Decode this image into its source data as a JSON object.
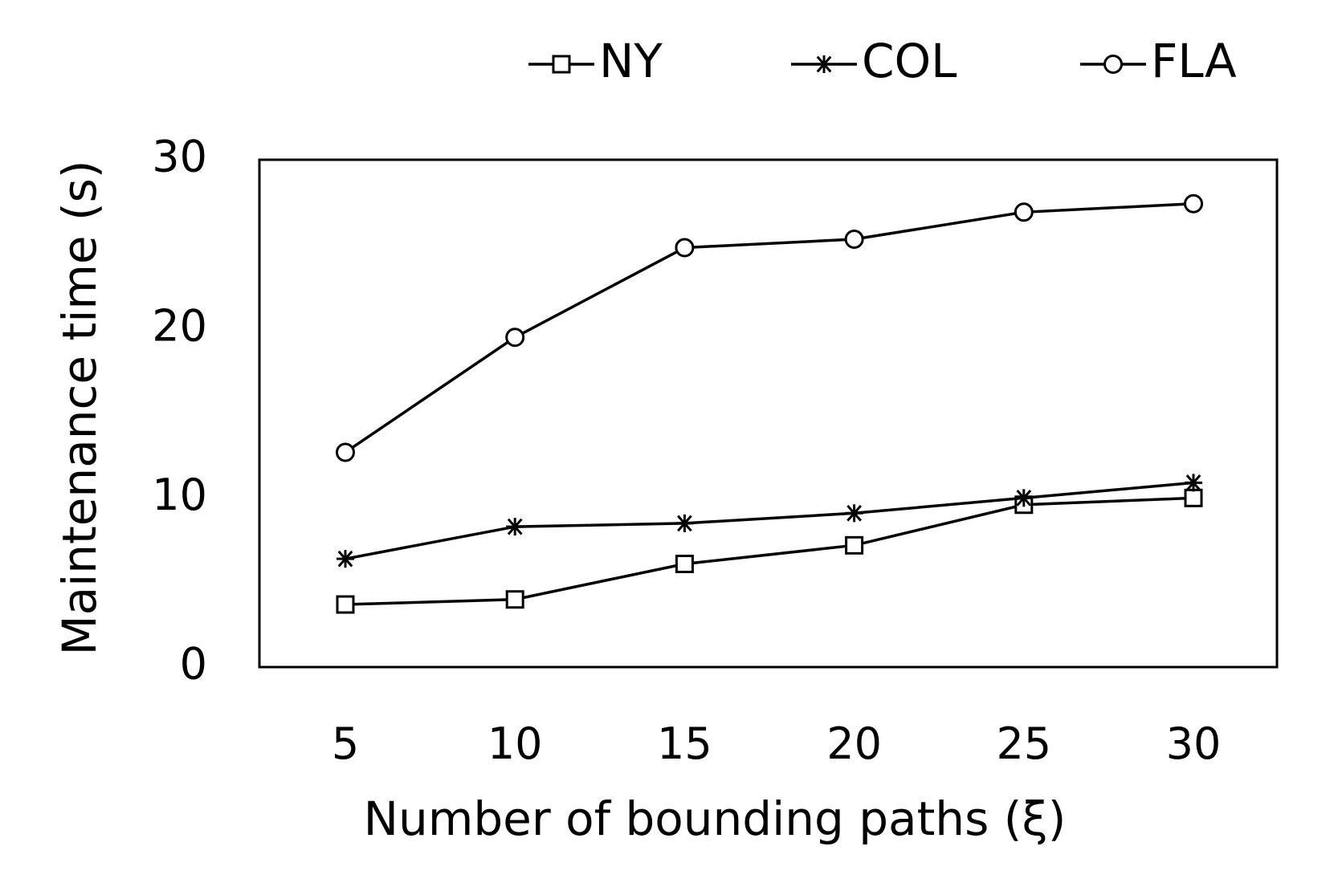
{
  "chart_data": {
    "type": "line",
    "title": "",
    "xlabel": "Number of bounding paths (ξ)",
    "ylabel": "Maintenance  time (s)",
    "x": [
      5,
      10,
      15,
      20,
      25,
      30
    ],
    "x_ticks": [
      "5",
      "10",
      "15",
      "20",
      "25",
      "30"
    ],
    "ylim": [
      0,
      30
    ],
    "y_ticks": [
      "0",
      "10",
      "20",
      "30"
    ],
    "grid": false,
    "legend_position": "top",
    "series": [
      {
        "name": "NY",
        "marker": "square",
        "values": [
          3.7,
          4.0,
          6.1,
          7.2,
          9.6,
          10.0
        ]
      },
      {
        "name": "COL",
        "marker": "asterisk",
        "values": [
          6.4,
          8.3,
          8.5,
          9.1,
          10.0,
          10.9
        ]
      },
      {
        "name": "FLA",
        "marker": "circle",
        "values": [
          12.7,
          19.5,
          24.8,
          25.3,
          26.9,
          27.4
        ]
      }
    ],
    "colors": {
      "line": "#000000",
      "frame": "#000000",
      "background": "#ffffff"
    }
  }
}
